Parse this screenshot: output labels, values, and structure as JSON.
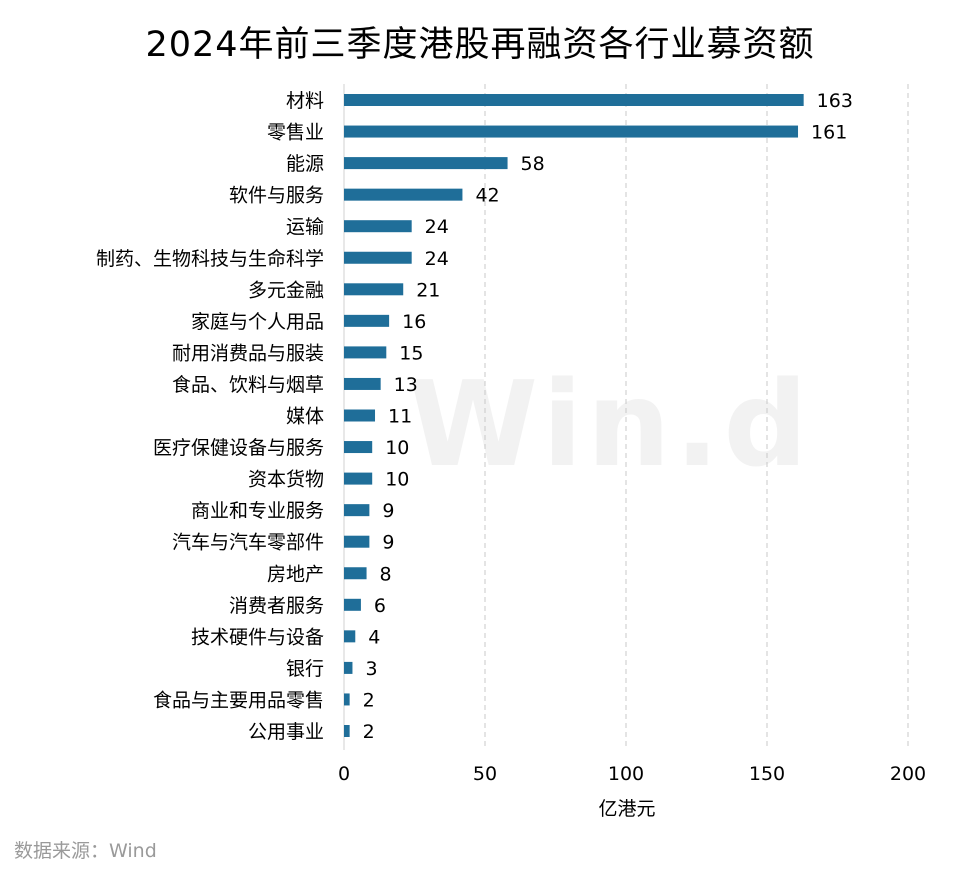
{
  "chart_data": {
    "type": "bar",
    "orientation": "horizontal",
    "title": "2024年前三季度港股再融资各行业募资额",
    "xlabel": "亿港元",
    "ylabel": "",
    "xlim": [
      0,
      200
    ],
    "xticks": [
      0,
      50,
      100,
      150,
      200
    ],
    "grid": "vertical-dashed",
    "bar_color": "#1f6e99",
    "categories": [
      "材料",
      "零售业",
      "能源",
      "软件与服务",
      "运输",
      "制药、生物科技与生命科学",
      "多元金融",
      "家庭与个人用品",
      "耐用消费品与服装",
      "食品、饮料与烟草",
      "媒体",
      "医疗保健设备与服务",
      "资本货物",
      "商业和专业服务",
      "汽车与汽车零部件",
      "房地产",
      "消费者服务",
      "技术硬件与设备",
      "银行",
      "食品与主要用品零售",
      "公用事业"
    ],
    "values": [
      163,
      161,
      58,
      42,
      24,
      24,
      21,
      16,
      15,
      13,
      11,
      10,
      10,
      9,
      9,
      8,
      6,
      4,
      3,
      2,
      2
    ]
  },
  "source": "数据来源：Wind",
  "watermark": "Win.d"
}
